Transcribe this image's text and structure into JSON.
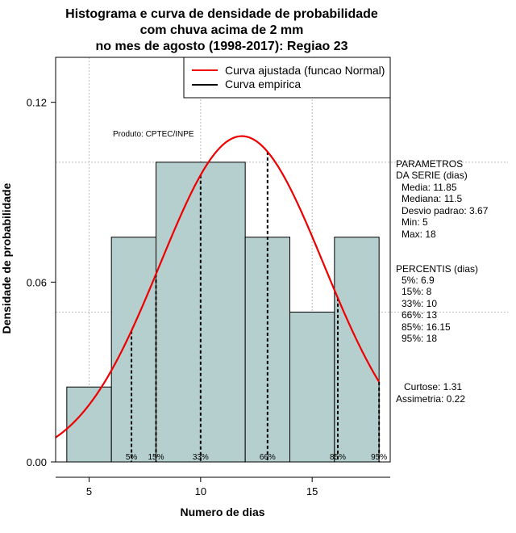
{
  "chart_data": {
    "type": "histogram",
    "title": [
      "Histograma e curva de densidade de probabilidade",
      "com chuva acima de 2 mm",
      "no mes de agosto (1998-2017): Regiao 23"
    ],
    "xlabel": "Numero de dias",
    "ylabel": "Densidade de probabilidade",
    "xlim": [
      3.5,
      18.5
    ],
    "ylim": [
      0,
      0.135
    ],
    "x_ticks": [
      5,
      10,
      15
    ],
    "y_ticks": [
      0.0,
      0.06,
      0.12
    ],
    "y_tick_labels": [
      "0.00",
      "0.06",
      "0.12"
    ],
    "grid": true,
    "bins": [
      {
        "from": 4,
        "to": 6,
        "density": 0.025
      },
      {
        "from": 6,
        "to": 8,
        "density": 0.075
      },
      {
        "from": 8,
        "to": 12,
        "density": 0.1
      },
      {
        "from": 12,
        "to": 14,
        "density": 0.075
      },
      {
        "from": 14,
        "to": 16,
        "density": 0.05
      },
      {
        "from": 16,
        "to": 18,
        "density": 0.075
      }
    ],
    "normal_fit": {
      "mean": 11.85,
      "sd": 3.67
    },
    "percentile_lines": [
      {
        "label": "5%",
        "x": 6.9
      },
      {
        "label": "15%",
        "x": 8
      },
      {
        "label": "33%",
        "x": 10
      },
      {
        "label": "66%",
        "x": 13
      },
      {
        "label": "85%",
        "x": 16.15
      },
      {
        "label": "95%",
        "x": 18
      }
    ],
    "legend": [
      {
        "label": "Curva ajustada (funcao Normal)",
        "color": "#ee0000"
      },
      {
        "label": "Curva empirica",
        "color": "#000000"
      }
    ],
    "annotation": "Produto: CPTEC/INPE",
    "colors": {
      "bar_fill": "#b5cfcf",
      "curve": "#ee0000",
      "grid": "#bbbbbb"
    }
  },
  "side_panel": {
    "params_lines": [
      "PARAMETROS",
      "DA SERIE (dias)",
      "Media: 11.85",
      "Mediana: 11.5",
      "Desvio padrao: 3.67",
      "Min: 5",
      "Max: 18"
    ],
    "percentis_lines": [
      "PERCENTIS (dias)",
      "5%: 6.9",
      "15%: 8",
      "33%: 10",
      "66%: 13",
      "85%: 16.15",
      "95%: 18"
    ],
    "curtose": "Curtose: 1.31",
    "assimetria": "Assimetria: 0.22"
  }
}
